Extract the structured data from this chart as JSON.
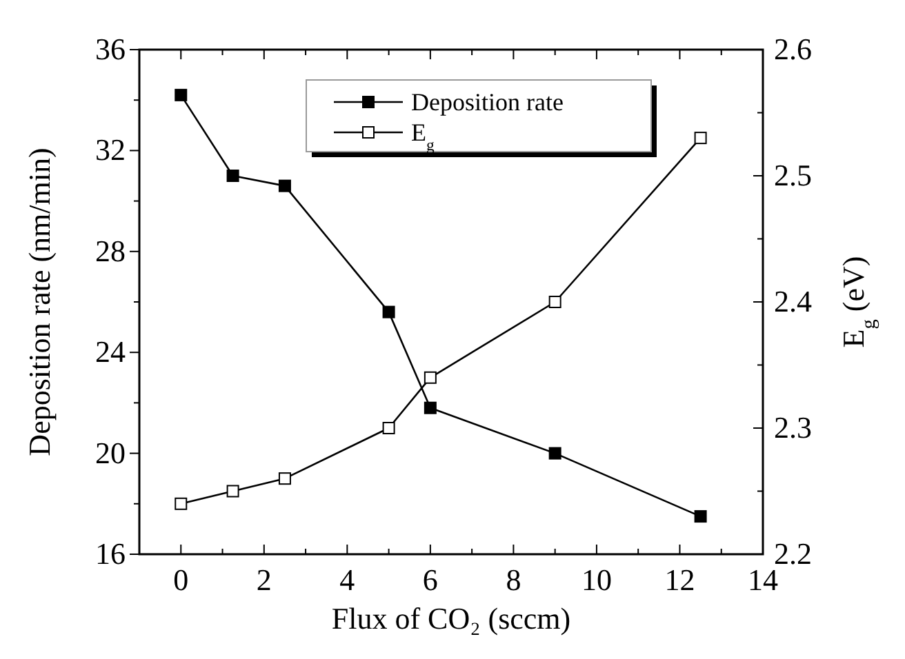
{
  "chart_data": {
    "type": "line",
    "xlabel": "Flux of CO₂ (sccm)",
    "ylabel": "Deposition rate (nm/min)",
    "y2label": "E$_{g}$ (eV)",
    "x": [
      0,
      1.25,
      2.5,
      5,
      6,
      9,
      12.5
    ],
    "series": [
      {
        "name": "Deposition rate",
        "color": "#000000",
        "values": [
          34.2,
          31.0,
          30.6,
          25.6,
          21.8,
          20.0,
          17.5
        ]
      },
      {
        "name": "E$_{g}$",
        "color": "#000000",
        "axis": "y2",
        "values": [
          2.24,
          2.25,
          2.26,
          2.3,
          2.34,
          2.4,
          2.53
        ]
      }
    ],
    "xlim": [
      -1,
      14
    ],
    "xticks": [
      {
        "value": -1,
        "label": null
      },
      0,
      {
        "value": 1,
        "label": null
      },
      2,
      {
        "value": 3,
        "label": null
      },
      4,
      {
        "value": 5,
        "label": null
      },
      6,
      {
        "value": 7,
        "label": null
      },
      8,
      {
        "value": 9,
        "label": null
      },
      10,
      {
        "value": 11,
        "label": null
      },
      12,
      {
        "value": 13,
        "label": null
      },
      14
    ],
    "ylim": [
      16,
      36
    ],
    "yticks": [
      16,
      {
        "value": 18,
        "label": null
      },
      20,
      {
        "value": 22,
        "label": null
      },
      24,
      {
        "value": 26,
        "label": null
      },
      28,
      {
        "value": 30,
        "label": null
      },
      32,
      {
        "value": 34,
        "label": null
      },
      36
    ],
    "y2lim": [
      2.2,
      2.6
    ],
    "y2ticks": [
      {
        "value": 2.2,
        "label": "2.2"
      },
      {
        "value": 2.25,
        "label": null
      },
      {
        "value": 2.3,
        "label": "2.3"
      },
      {
        "value": 2.35,
        "label": null
      },
      {
        "value": 2.4,
        "label": "2.4"
      },
      {
        "value": 2.45,
        "label": null
      },
      {
        "value": 2.5,
        "label": "2.5"
      },
      {
        "value": 2.55,
        "label": null
      },
      {
        "value": 2.6,
        "label": "2.6"
      }
    ],
    "marker": "square",
    "line_style": "solid",
    "grid": false,
    "legend": "top"
  }
}
